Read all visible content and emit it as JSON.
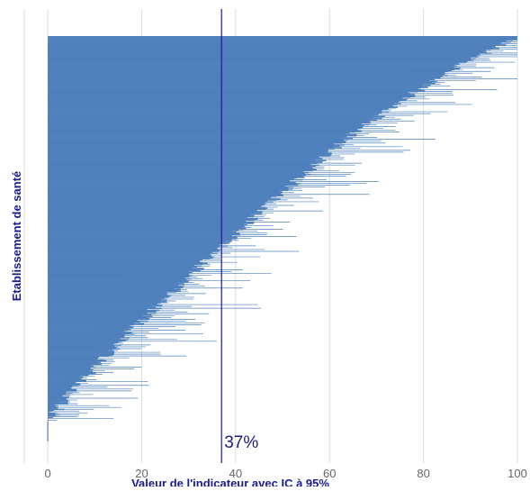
{
  "chart_data": {
    "type": "bar",
    "orientation": "horizontal",
    "xlabel": "Valeur de l'indicateur avec IC à 95%",
    "ylabel": "Etablissement de santé",
    "xlim": [
      -5,
      100
    ],
    "x_ticks": [
      "0",
      "20",
      "40",
      "60",
      "80",
      "100"
    ],
    "x_tick_values": [
      0,
      20,
      40,
      60,
      80,
      100
    ],
    "grid": "vertical",
    "reference_line": {
      "value": 37,
      "label": "37%"
    },
    "n_establishments": 420,
    "distribution": {
      "sorted": "ascending",
      "values_range": [
        0,
        100
      ],
      "approx_quantiles": [
        {
          "rank_fraction": 0.0,
          "value": 0
        },
        {
          "rank_fraction": 0.1,
          "value": 7
        },
        {
          "rank_fraction": 0.25,
          "value": 19
        },
        {
          "rank_fraction": 0.5,
          "value": 41
        },
        {
          "rank_fraction": 0.75,
          "value": 65
        },
        {
          "rank_fraction": 0.9,
          "value": 84
        },
        {
          "rank_fraction": 1.0,
          "value": 100
        }
      ]
    },
    "colors": {
      "bar": "#4f81bd",
      "ci": "#4f81bd",
      "reference": "#1a1a8c",
      "grid": "#dddddd",
      "axis_title": "#1a1a8c",
      "tick": "#666666"
    }
  }
}
